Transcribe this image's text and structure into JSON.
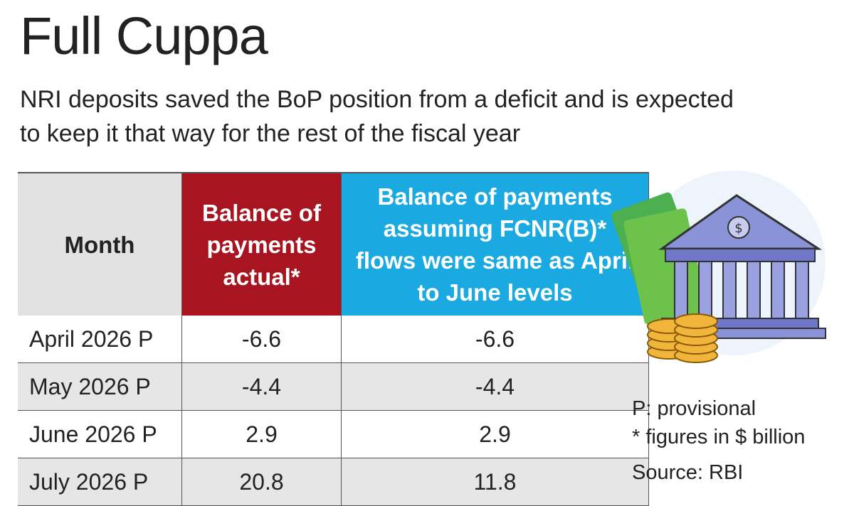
{
  "header": {
    "title": "Full Cuppa",
    "subtitle": "NRI deposits saved the BoP position from a deficit and is expected to keep it that way for the rest of the fiscal year"
  },
  "table": {
    "columns": [
      "Month",
      "Balance of payments actual*",
      "Balance of payments assuming FCNR(B)* flows were same as April to June levels"
    ],
    "rows": [
      [
        "April 2026 P",
        "-6.6",
        "-6.6"
      ],
      [
        "May 2026 P",
        "-4.4",
        "-4.4"
      ],
      [
        "June 2026 P",
        "2.9",
        "2.9"
      ],
      [
        "July 2026 P",
        "20.8",
        "11.8"
      ]
    ]
  },
  "notes": [
    "P: provisional",
    "* figures in $ billion",
    "Source: RBI"
  ]
}
